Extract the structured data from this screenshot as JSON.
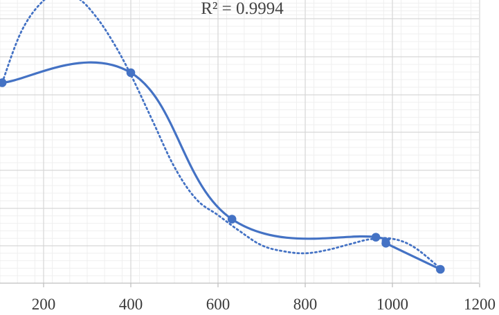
{
  "chart_data": {
    "type": "scatter",
    "xlim": [
      100,
      1200
    ],
    "x_ticks": [
      200,
      400,
      600,
      800,
      1000,
      1200
    ],
    "x_tick_labels": [
      "200",
      "400",
      "600",
      "800",
      "1000",
      "1200"
    ],
    "y_tick_labels_visible": false,
    "grid": {
      "major_x": true,
      "minor_x": true,
      "major_y": true,
      "minor_y": true
    },
    "series": [
      {
        "style": "smooth-line-with-markers",
        "color": "#4472c4",
        "x": [
          105,
          400,
          632,
          962,
          985,
          1110
        ],
        "y": [
          8.25,
          8.5,
          4.85,
          4.4,
          4.25,
          3.6
        ]
      }
    ],
    "trendline": {
      "type": "polynomial",
      "style": "dotted",
      "color": "#4472c4",
      "label": "R² = 0.9994",
      "shape_x": [
        105,
        150,
        200,
        240,
        280,
        320,
        360,
        400,
        450,
        500,
        550,
        600,
        650,
        700,
        750,
        800,
        850,
        900,
        950,
        1000,
        1050,
        1110
      ],
      "shape_y": [
        8.25,
        9.55,
        10.3,
        10.5,
        10.35,
        9.9,
        9.25,
        8.45,
        7.3,
        6.15,
        5.35,
        4.95,
        4.55,
        4.2,
        4.05,
        4.0,
        4.08,
        4.22,
        4.35,
        4.36,
        4.15,
        3.62
      ]
    }
  }
}
